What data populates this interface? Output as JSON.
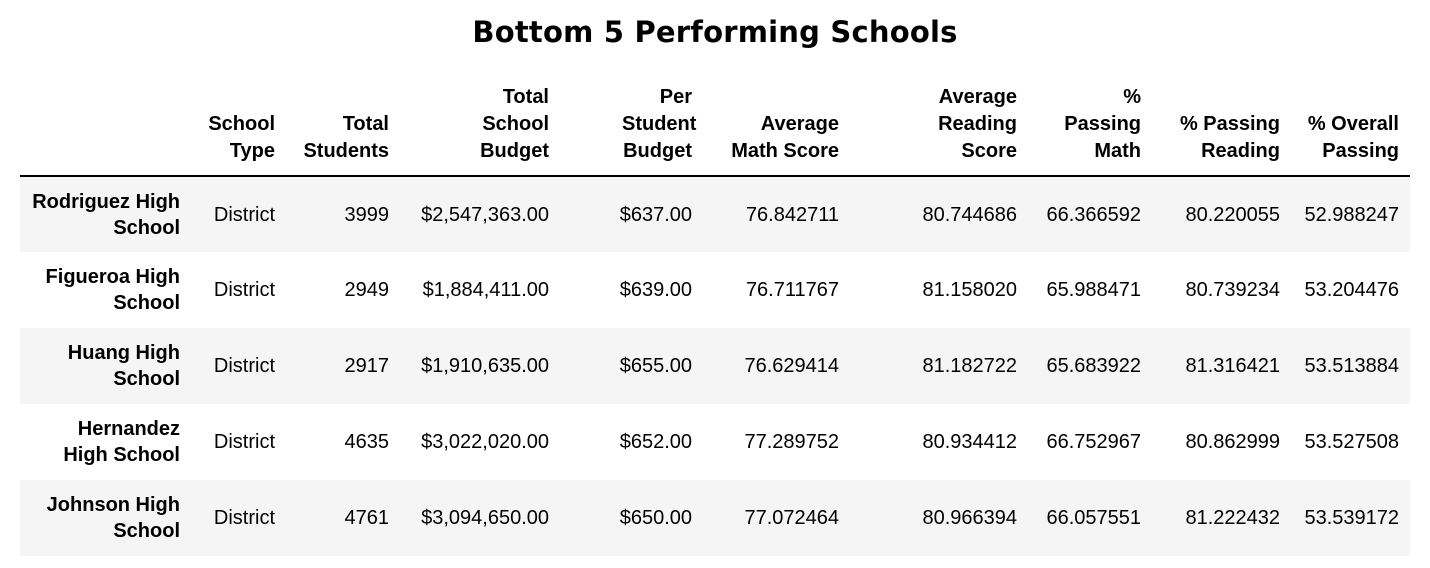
{
  "title": "Bottom 5 Performing Schools",
  "columns": [
    "School Type",
    "Total Students",
    "Total School Budget",
    "Per Student Budget",
    "Average Math Score",
    "Average Reading Score",
    "% Passing Math",
    "% Passing Reading",
    "% Overall Passing"
  ],
  "rows": [
    {
      "school": "Rodriguez High School",
      "cells": [
        "District",
        "3999",
        "$2,547,363.00",
        "$637.00",
        "76.842711",
        "80.744686",
        "66.366592",
        "80.220055",
        "52.988247"
      ]
    },
    {
      "school": "Figueroa High School",
      "cells": [
        "District",
        "2949",
        "$1,884,411.00",
        "$639.00",
        "76.711767",
        "81.158020",
        "65.988471",
        "80.739234",
        "53.204476"
      ]
    },
    {
      "school": "Huang High School",
      "cells": [
        "District",
        "2917",
        "$1,910,635.00",
        "$655.00",
        "76.629414",
        "81.182722",
        "65.683922",
        "81.316421",
        "53.513884"
      ]
    },
    {
      "school": "Hernandez High School",
      "cells": [
        "District",
        "4635",
        "$3,022,020.00",
        "$652.00",
        "77.289752",
        "80.934412",
        "66.752967",
        "80.862999",
        "53.527508"
      ]
    },
    {
      "school": "Johnson High School",
      "cells": [
        "District",
        "4761",
        "$3,094,650.00",
        "$650.00",
        "77.072464",
        "80.966394",
        "66.057551",
        "81.222432",
        "53.539172"
      ]
    }
  ]
}
